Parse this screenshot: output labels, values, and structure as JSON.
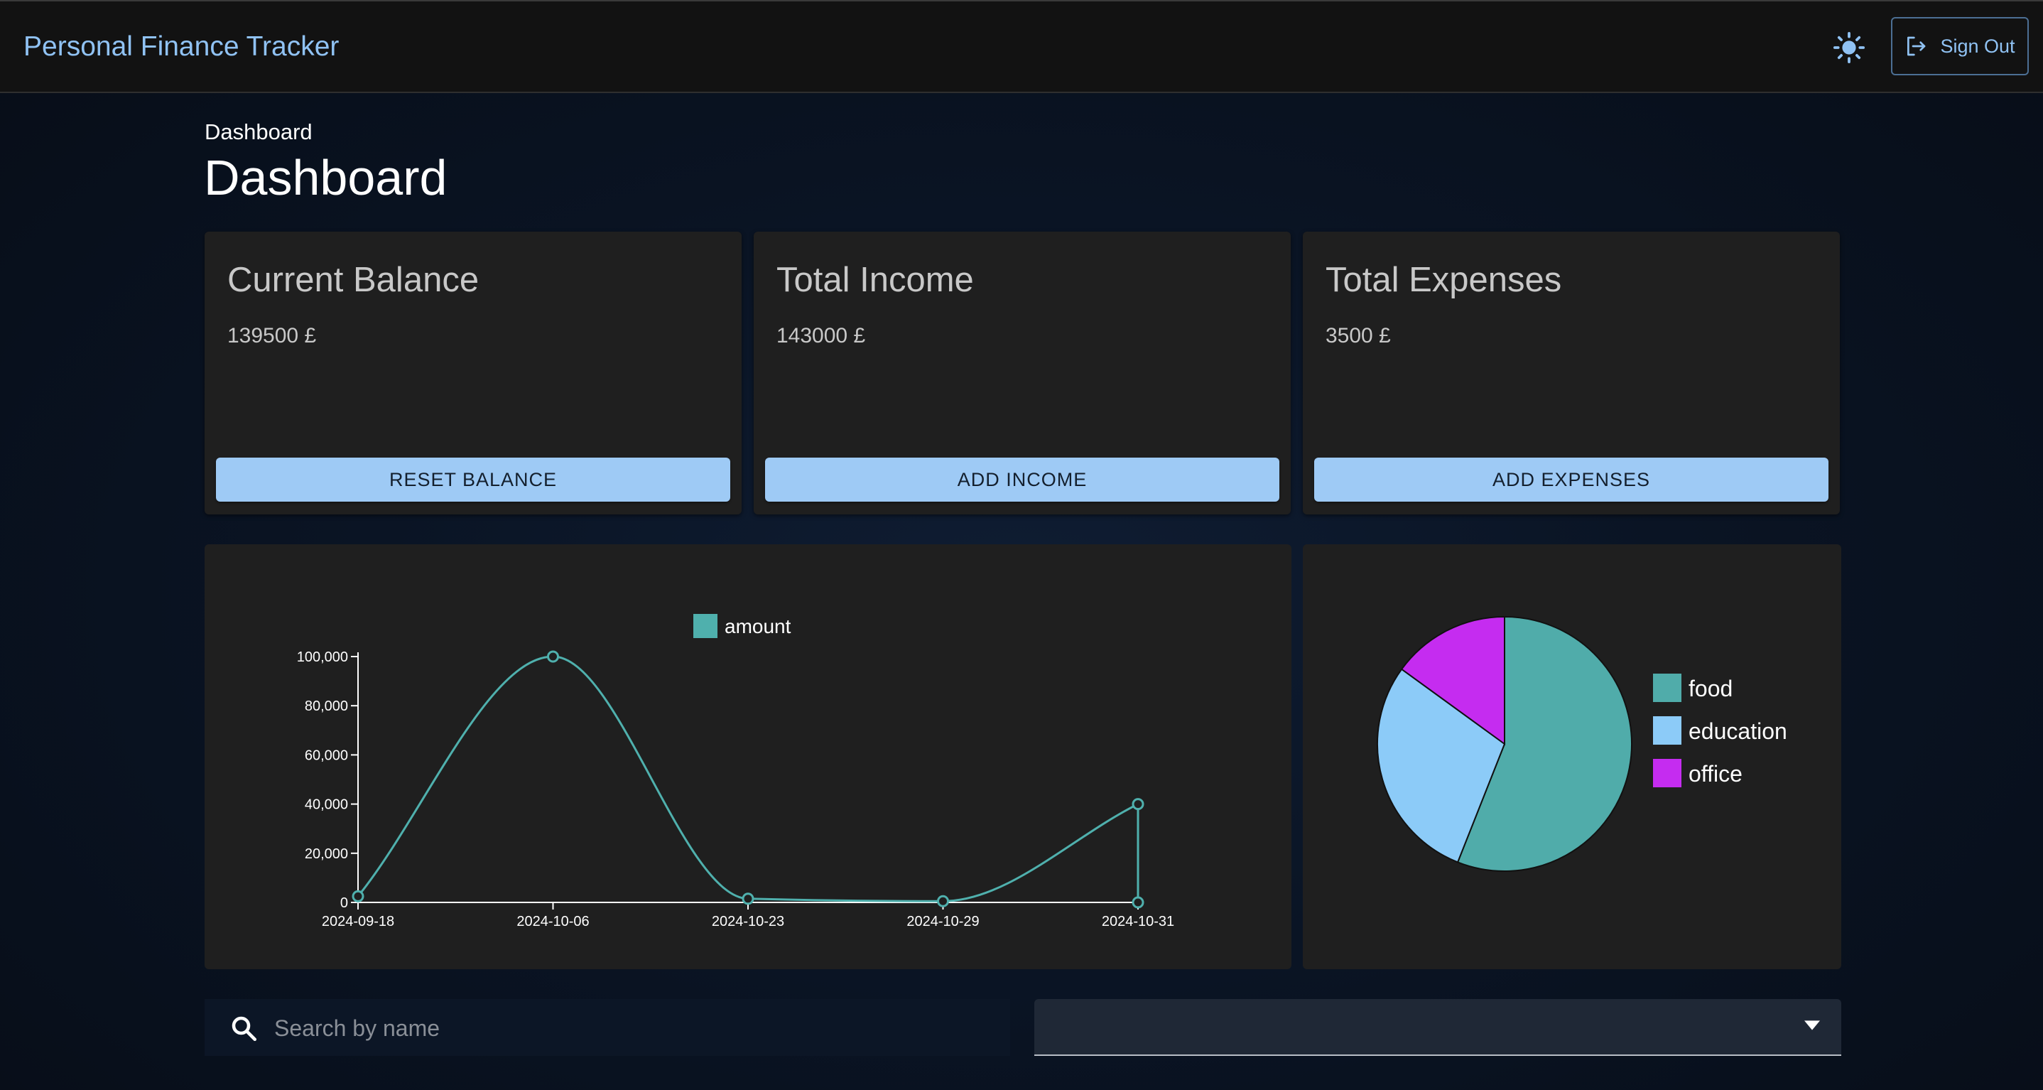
{
  "app": {
    "title": "Personal Finance Tracker",
    "sign_out_label": "Sign Out",
    "theme_icon": "sun-icon"
  },
  "page": {
    "breadcrumb": "Dashboard",
    "title": "Dashboard"
  },
  "cards": [
    {
      "title": "Current Balance",
      "value": "139500 £",
      "button": "RESET BALANCE"
    },
    {
      "title": "Total Income",
      "value": "143000 £",
      "button": "ADD INCOME"
    },
    {
      "title": "Total Expenses",
      "value": "3500 £",
      "button": "ADD EXPENSES"
    }
  ],
  "chart_data": [
    {
      "type": "line",
      "x": [
        "2024-09-18",
        "2024-10-06",
        "2024-10-23",
        "2024-10-29",
        "2024-10-31"
      ],
      "series": [
        {
          "name": "amount",
          "values": [
            2500,
            100000,
            1500,
            500,
            40000
          ]
        }
      ],
      "ylim": [
        0,
        100000
      ],
      "yticks": [
        "0",
        "20,000",
        "40,000",
        "60,000",
        "80,000",
        "100,000"
      ],
      "legend": "top",
      "color": "#4fb0ad"
    },
    {
      "type": "pie",
      "labels": [
        "food",
        "education",
        "office"
      ],
      "values": [
        56,
        29,
        15
      ],
      "colors": [
        "#50acaa",
        "#8ccbf8",
        "#c52cf0"
      ],
      "legend": "right"
    }
  ],
  "filters": {
    "search_placeholder": "Search by name",
    "search_icon": "search-icon",
    "select_value": "",
    "select_icon": "caret-down-icon"
  },
  "colors": {
    "accent": "#90c2f3",
    "button": "#9ecaf5",
    "card": "#1f1f1f"
  }
}
